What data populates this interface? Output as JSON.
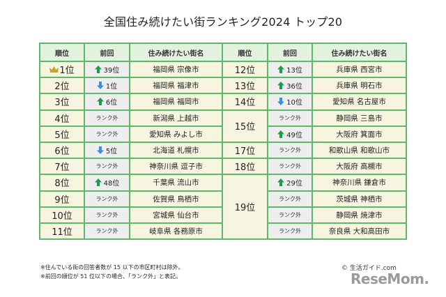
{
  "title": "全国住み続けたい街ランキング2024 トップ20",
  "headers": [
    "順位",
    "前回",
    "住み続けたい街名",
    "順位",
    "前回",
    "住み続けたい街名"
  ],
  "colors": {
    "border": "#5db86a",
    "header_bg": "#e3f1df",
    "cell_bg": "#f7f4e0",
    "prev_bg": "#eeeeee",
    "up": "#1e9a4a",
    "down": "#3b8fe0",
    "crown": "#c9a227"
  },
  "left": [
    {
      "rank": "1位",
      "crown": true,
      "prev_dir": "up",
      "prev": "39位",
      "city": "福岡県 宗像市"
    },
    {
      "rank": "2位",
      "prev_dir": "down",
      "prev": "1位",
      "city": "福岡県 福津市"
    },
    {
      "rank": "3位",
      "prev_dir": "up",
      "prev": "6位",
      "city": "福岡県 福岡市"
    },
    {
      "rank": "4位",
      "prev_dir": "none",
      "prev": "ランク外",
      "city": "新潟県 上越市"
    },
    {
      "rank": "5位",
      "prev_dir": "none",
      "prev": "ランク外",
      "city": "愛知県 みよし市"
    },
    {
      "rank": "6位",
      "prev_dir": "down",
      "prev": "5位",
      "city": "北海道 札幌市"
    },
    {
      "rank": "7位",
      "prev_dir": "none",
      "prev": "ランク外",
      "city": "神奈川県 逗子市"
    },
    {
      "rank": "8位",
      "prev_dir": "up",
      "prev": "48位",
      "city": "千葉県 流山市"
    },
    {
      "rank": "9位",
      "prev_dir": "none",
      "prev": "ランク外",
      "city": "佐賀県 鳥栖市"
    },
    {
      "rank": "10位",
      "prev_dir": "none",
      "prev": "ランク外",
      "city": "宮城県 仙台市"
    },
    {
      "rank": "11位",
      "prev_dir": "none",
      "prev": "ランク外",
      "city": "岐阜県 各務原市"
    }
  ],
  "right": [
    {
      "rank": "12位",
      "prev_dir": "up",
      "prev": "13位",
      "city": "兵庫県 西宮市"
    },
    {
      "rank": "13位",
      "prev_dir": "up",
      "prev": "36位",
      "city": "兵庫県 明石市"
    },
    {
      "rank": "14位",
      "prev_dir": "down",
      "prev": "10位",
      "city": "愛知県 名古屋市"
    },
    {
      "rank": "15位",
      "prev_dir": "none",
      "prev": "ランク外",
      "city": "静岡県 三島市"
    },
    {
      "rank": "15位",
      "prev_dir": "up",
      "prev": "49位",
      "city": "大阪府 箕面市"
    },
    {
      "rank": "17位",
      "prev_dir": "none",
      "prev": "ランク外",
      "city": "和歌山県 和歌山市"
    },
    {
      "rank": "18位",
      "prev_dir": "none",
      "prev": "ランク外",
      "city": "大阪府 高槻市"
    },
    {
      "rank": "19位",
      "prev_dir": "up",
      "prev": "29位",
      "city": "神奈川県 鎌倉市"
    },
    {
      "rank": "19位",
      "prev_dir": "none",
      "prev": "ランク外",
      "city": "茨城県 神栖市"
    },
    {
      "rank": "19位",
      "prev_dir": "none",
      "prev": "ランク外",
      "city": "静岡県 焼津市"
    },
    {
      "rank": "19位",
      "prev_dir": "none",
      "prev": "ランク外",
      "city": "奈良県 大和高田市"
    }
  ],
  "notes": [
    "※住んでいる街の回答者数が 15 以下の市区町村は除外。",
    "※前回の順位が 51 位以下の場合、「ランク外」と表記。"
  ],
  "credit": "© 生活ガイド.com",
  "brand": "ReseMom."
}
